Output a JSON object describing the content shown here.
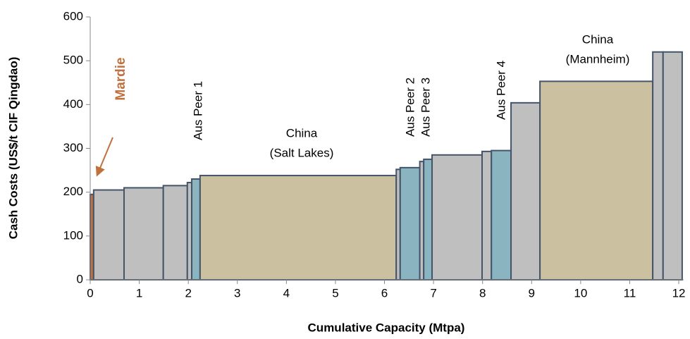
{
  "chart_data": {
    "type": "cost_curve",
    "xlabel": "Cumulative Capacity (Mtpa)",
    "ylabel": "Cash Costs (US$/t CIF Qingdao)",
    "xlim": [
      0,
      12.1
    ],
    "ylim": [
      0,
      600
    ],
    "xticks": [
      0,
      1,
      2,
      3,
      4,
      5,
      6,
      7,
      8,
      9,
      10,
      11,
      12
    ],
    "yticks": [
      0,
      100,
      200,
      300,
      400,
      500,
      600
    ],
    "grid": false,
    "edge_color": "#44546a",
    "x_start": [
      0,
      0.07,
      0.69,
      1.49,
      1.98,
      2.07,
      2.24,
      6.24,
      6.32,
      6.72,
      6.8,
      6.97,
      7.99,
      8.18,
      8.58,
      9.17,
      11.47,
      11.68
    ],
    "x_end": [
      0.07,
      0.69,
      1.49,
      1.98,
      2.07,
      2.24,
      6.24,
      6.32,
      6.72,
      6.8,
      6.97,
      7.99,
      8.18,
      8.58,
      9.17,
      11.47,
      11.68,
      12.07
    ],
    "values": [
      195,
      205,
      210,
      215,
      222,
      230,
      238,
      252,
      256,
      270,
      275,
      285,
      293,
      295,
      404,
      453,
      520,
      520
    ],
    "colors": [
      "#c0703c",
      "#bfbfbf",
      "#bfbfbf",
      "#bfbfbf",
      "#bfbfbf",
      "#8ab4bf",
      "#cbc0a0",
      "#bfbfbf",
      "#8ab4bf",
      "#bfbfbf",
      "#8ab4bf",
      "#bfbfbf",
      "#bfbfbf",
      "#8ab4bf",
      "#bfbfbf",
      "#cbc0a0",
      "#bfbfbf",
      "#bfbfbf"
    ],
    "annotations": [
      "Mardie",
      "Aus Peer 1",
      "China",
      "(Salt Lakes)",
      "Aus Peer 2",
      "Aus Peer 3",
      "Aus Peer 4",
      "China",
      "(Mannheim)"
    ]
  }
}
